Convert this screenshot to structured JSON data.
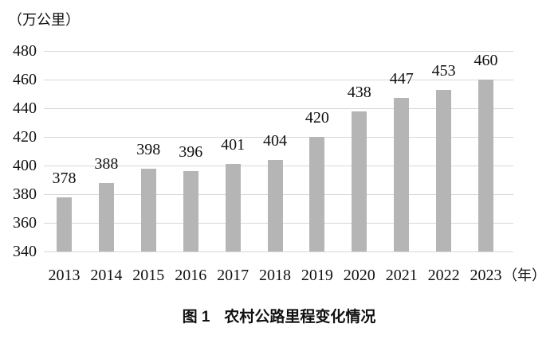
{
  "chart": {
    "unit_label": "（万公里）",
    "x_unit_label": "（年）",
    "caption_prefix": "图 1",
    "caption_title": "农村公路里程变化情况",
    "colors": {
      "bar": "#b5b5b5",
      "gridline": "#d7d7d7",
      "text": "#111111",
      "background": "#ffffff"
    }
  },
  "chart_data": {
    "type": "bar",
    "title": "图1 农村公路里程变化情况",
    "categories": [
      "2013",
      "2014",
      "2015",
      "2016",
      "2017",
      "2018",
      "2019",
      "2020",
      "2021",
      "2022",
      "2023"
    ],
    "values": [
      378,
      388,
      398,
      396,
      401,
      404,
      420,
      438,
      447,
      453,
      460
    ],
    "xlabel": "（年）",
    "ylabel": "（万公里）",
    "ylim": [
      340,
      480
    ],
    "ytick_step": 20,
    "yticks": [
      340,
      360,
      380,
      400,
      420,
      440,
      460,
      480
    ],
    "grid": true,
    "legend": false,
    "data_labels": true
  }
}
